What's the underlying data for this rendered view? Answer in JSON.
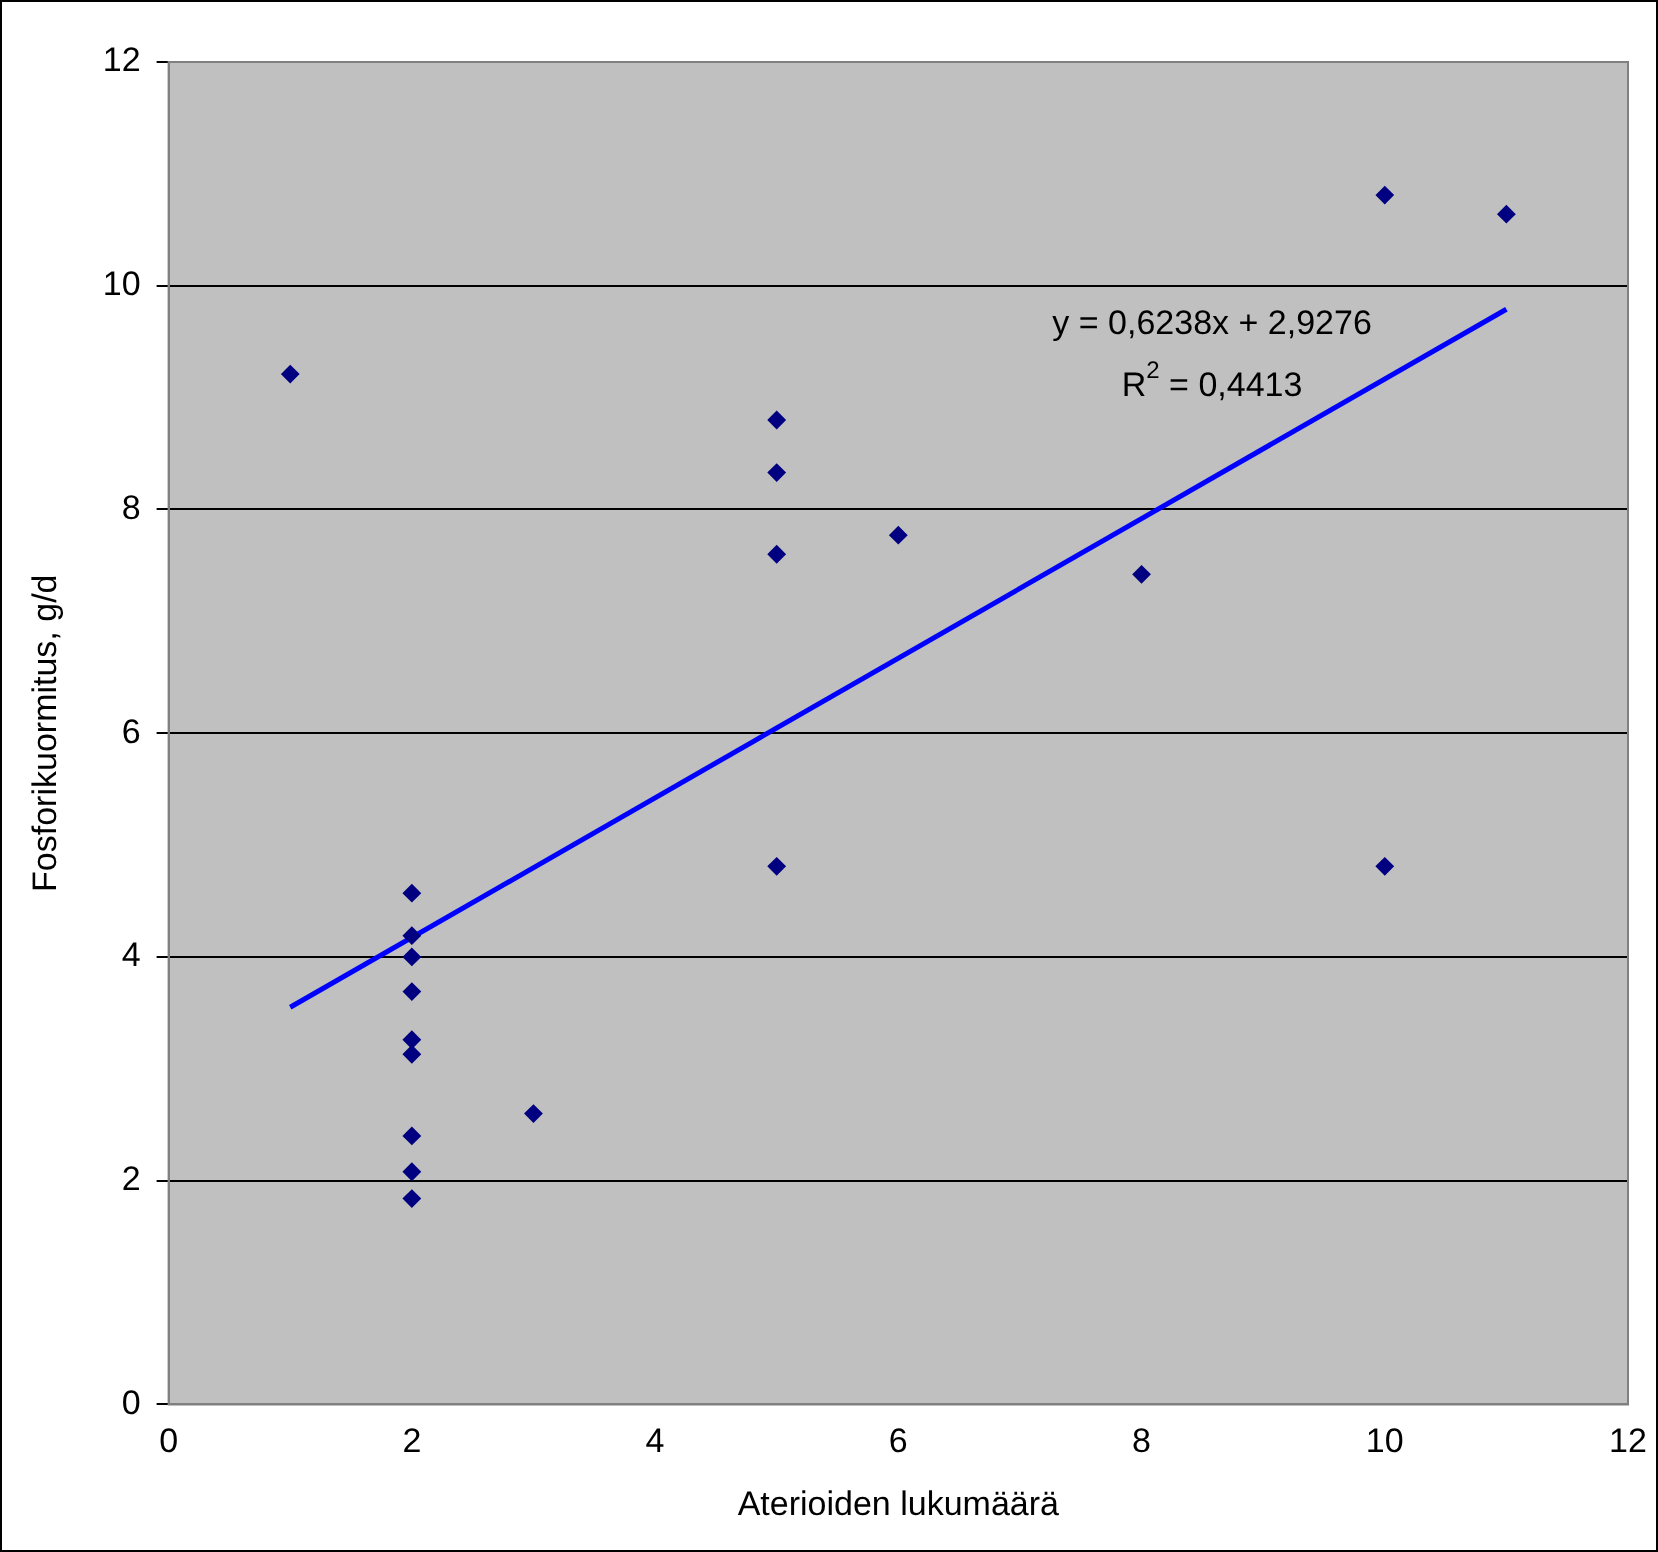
{
  "chart_data": {
    "type": "scatter",
    "xlabel": "Aterioiden lukumäärä",
    "ylabel": "Fosforikuormitus, g/d",
    "xlim": [
      0,
      12
    ],
    "xticks": [
      0,
      2,
      4,
      6,
      8,
      10,
      12
    ],
    "ylim": [
      0,
      12
    ],
    "yticks": [
      0,
      2,
      4,
      6,
      8,
      10,
      12
    ],
    "grid": "y",
    "legend": false,
    "marker": "diamond",
    "series": [
      {
        "color": "#000080",
        "x": [
          1,
          2,
          2,
          2,
          2,
          2,
          2,
          2,
          2,
          2,
          3,
          5,
          5,
          5,
          5,
          6,
          8,
          10,
          10,
          11
        ],
        "values": [
          9.21,
          4.57,
          4.19,
          4.0,
          3.69,
          3.26,
          3.13,
          2.4,
          2.08,
          1.84,
          2.6,
          8.8,
          8.33,
          7.6,
          4.81,
          7.77,
          7.42,
          10.81,
          4.81,
          10.64
        ]
      },
      {
        "type": "line",
        "marker": "none",
        "color": "#0000ff",
        "x": [
          1,
          11
        ],
        "values": [
          3.55,
          9.79
        ]
      }
    ],
    "annotations": [
      "y = 0,6238x + 2,9276",
      "R$^{2}$ = 0,4413"
    ]
  }
}
